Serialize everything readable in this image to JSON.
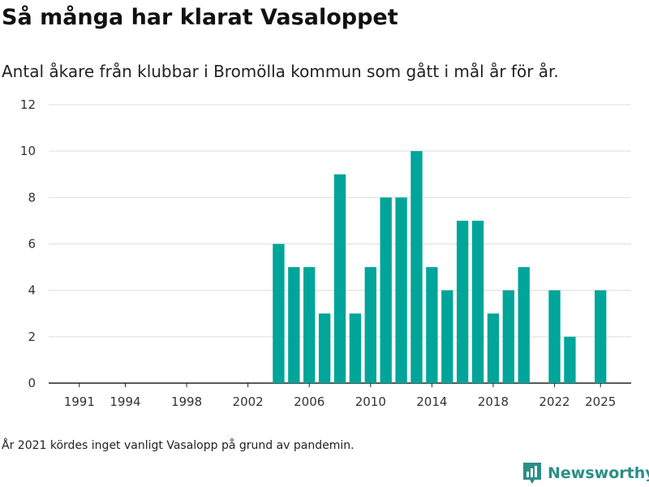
{
  "title": "Så många har klarat Vasaloppet",
  "subtitle": "Antal åkare från klubbar i Bromölla kommun som gått i mål år för år.",
  "note": "År 2021 kördes inget vanligt Vasalopp på grund av pandemin.",
  "brand": {
    "name": "Newsworthy",
    "color": "#2a8f87"
  },
  "chart_data": {
    "type": "bar",
    "title": "Så många har klarat Vasaloppet",
    "subtitle": "Antal åkare från klubbar i Bromölla kommun som gått i mål år för år.",
    "xlabel": "",
    "ylabel": "",
    "bar_color": "#00a59a",
    "ylim": [
      0,
      12
    ],
    "y_ticks": [
      0,
      2,
      4,
      6,
      8,
      10,
      12
    ],
    "x_range": [
      1989,
      2027
    ],
    "x_ticks": [
      1991,
      1994,
      1998,
      2002,
      2006,
      2010,
      2014,
      2018,
      2022,
      2025
    ],
    "grid": true,
    "legend": "none",
    "x": [
      2004,
      2005,
      2006,
      2007,
      2008,
      2009,
      2010,
      2011,
      2012,
      2013,
      2014,
      2015,
      2016,
      2017,
      2018,
      2019,
      2020,
      2022,
      2023,
      2025
    ],
    "values": [
      6,
      5,
      5,
      3,
      9,
      3,
      5,
      8,
      8,
      10,
      5,
      4,
      7,
      7,
      3,
      4,
      5,
      4,
      2,
      4
    ]
  }
}
